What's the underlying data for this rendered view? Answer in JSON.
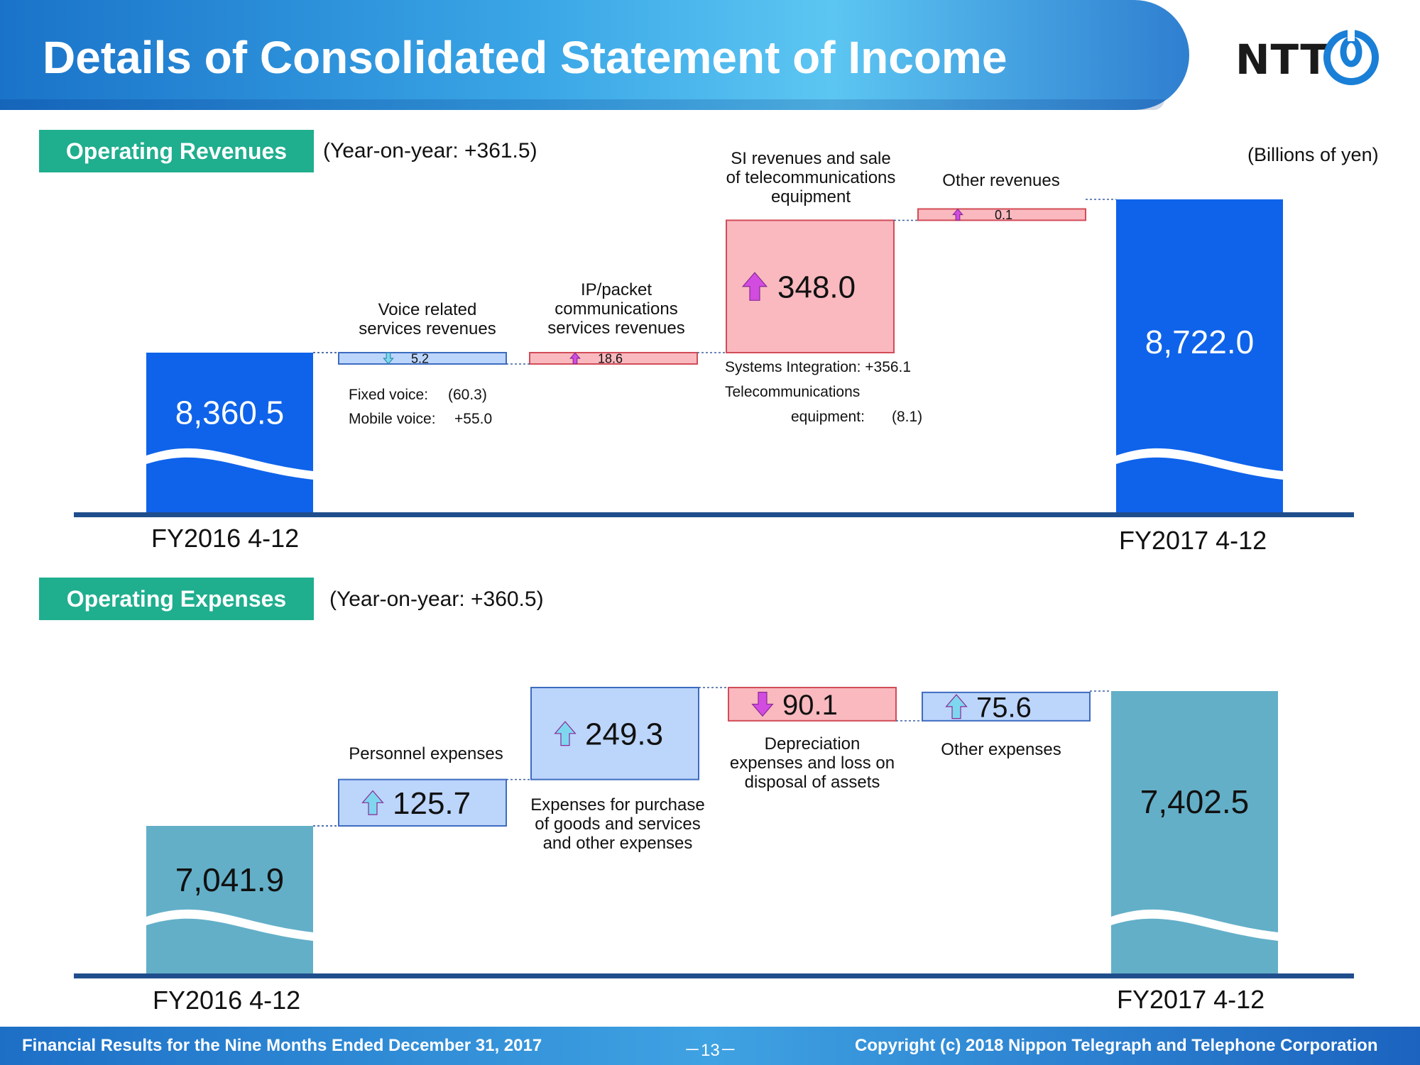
{
  "header": {
    "title": "Details of Consolidated Statement of Income",
    "logo_text": "NTT"
  },
  "unit_note": "(Billions of yen)",
  "revenues": {
    "tag": "Operating Revenues",
    "yoy": "(Year-on-year: +361.5)",
    "label_voice": [
      "Voice related",
      "services revenues"
    ],
    "label_ip": [
      "IP/packet",
      "communications",
      "services revenues"
    ],
    "label_si": [
      "SI revenues and sale",
      "of telecommunications",
      "equipment"
    ],
    "label_other": "Other revenues",
    "note_fixed": "Fixed voice:",
    "note_fixed_val": "(60.3)",
    "note_mobile": "Mobile voice:",
    "note_mobile_val": "+55.0",
    "note_si_1": "Systems Integration: +356.1",
    "note_si_2": "Telecommunications",
    "note_si_3": "equipment:",
    "note_si_3_val": "(8.1)",
    "x_start": "FY2016 4-12",
    "x_end": "FY2017 4-12"
  },
  "expenses": {
    "tag": "Operating Expenses",
    "yoy": "(Year-on-year: +360.5)",
    "label_personnel": "Personnel expenses",
    "label_purchase": [
      "Expenses for purchase",
      "of goods and services",
      "and other expenses"
    ],
    "label_depr": [
      "Depreciation",
      "expenses and loss on",
      "disposal of assets"
    ],
    "label_other": "Other expenses",
    "x_start": "FY2016 4-12",
    "x_end": "FY2017 4-12"
  },
  "footer": {
    "left": "Financial Results for the Nine Months Ended December 31, 2017",
    "page": "－13－",
    "right": "Copyright (c) 2018  Nippon Telegraph and Telephone Corporation"
  },
  "colors": {
    "revenue_total": "#0f63ea",
    "expense_total": "#63afc8",
    "increase_fill": "#f9b9bf",
    "increase_stroke": "#d24c58",
    "decrease_fill": "#bcd5fb",
    "decrease_stroke": "#3d6cc0",
    "arrow_magenta": "#d24ce0",
    "arrow_cyan": "#7fd7ef",
    "axis": "#1f4e8c",
    "tag": "#1fae8e"
  },
  "chart_data": [
    {
      "type": "waterfall",
      "title": "Operating Revenues",
      "unit": "Billions of yen",
      "start": {
        "label": "FY2016 4-12",
        "value": 8360.5,
        "text": "8,360.5"
      },
      "end": {
        "label": "FY2017 4-12",
        "value": 8722.0,
        "text": "8,722.0"
      },
      "steps": [
        {
          "name": "Voice related services revenues",
          "delta": -5.2,
          "text": "5.2"
        },
        {
          "name": "IP/packet communications services revenues",
          "delta": 18.6,
          "text": "18.6"
        },
        {
          "name": "SI revenues and sale of telecommunications equipment",
          "delta": 348.0,
          "text": "348.0"
        },
        {
          "name": "Other revenues",
          "delta": 0.1,
          "text": "0.1"
        }
      ]
    },
    {
      "type": "waterfall",
      "title": "Operating Expenses",
      "unit": "Billions of yen",
      "start": {
        "label": "FY2016 4-12",
        "value": 7041.9,
        "text": "7,041.9"
      },
      "end": {
        "label": "FY2017 4-12",
        "value": 7402.5,
        "text": "7,402.5"
      },
      "steps": [
        {
          "name": "Personnel expenses",
          "delta": 125.7,
          "text": "125.7"
        },
        {
          "name": "Expenses for purchase of goods and services and other expenses",
          "delta": 249.3,
          "text": "249.3"
        },
        {
          "name": "Depreciation expenses and loss on disposal of assets",
          "delta": -90.1,
          "text": "90.1"
        },
        {
          "name": "Other expenses",
          "delta": 75.6,
          "text": "75.6"
        }
      ]
    }
  ]
}
